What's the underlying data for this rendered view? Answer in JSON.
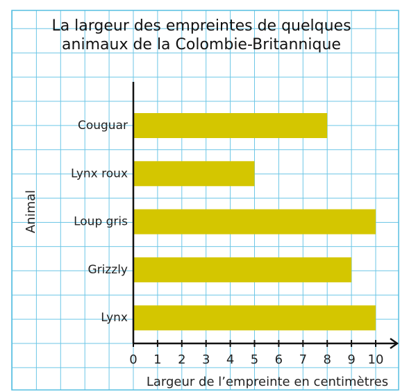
{
  "chart_data": {
    "type": "bar",
    "orientation": "horizontal",
    "title": "La largeur des empreintes de quelques animaux de la Colombie-Britannique",
    "xlabel": "Largeur de l’empreinte en centimètres",
    "ylabel": "Animal",
    "categories": [
      "Couguar",
      "Lynx roux",
      "Loup gris",
      "Grizzly",
      "Lynx"
    ],
    "values": [
      8,
      5,
      10,
      9,
      10
    ],
    "color": "#d4c600",
    "xlim": [
      0,
      10
    ],
    "xticks": [
      0,
      1,
      2,
      3,
      4,
      5,
      6,
      7,
      8,
      9,
      10
    ]
  }
}
